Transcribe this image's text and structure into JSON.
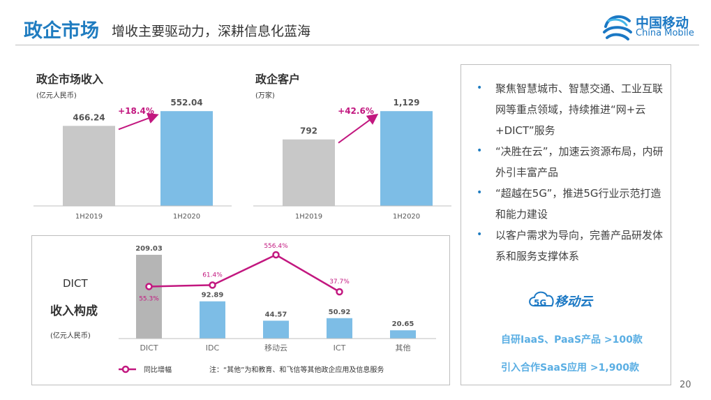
{
  "header": {
    "title": "政企市场",
    "subtitle": "增收主要驱动力，深耕信息化蓝海",
    "logo_cn": "中国移动",
    "logo_en": "China Mobile"
  },
  "page_number": "20",
  "right_panel": {
    "bullets": [
      "聚焦智慧城市、智慧交通、工业互联网等重点领域，持续推进“网+云+DICT”服务",
      "“决胜在云”，加速云资源布局，内研外引丰富产品",
      "“超越在5G”，推进5G行业示范打造和能力建设",
      "以客户需求为导向，完善产品研发体系和服务支撑体系"
    ],
    "cloud_logo_text": "移动云",
    "cloud_logo_badge": "5G",
    "stats": [
      "自研IaaS、PaaS产品 >100款",
      "引入合作SaaS应用 >1,900款"
    ]
  },
  "chart_data": [
    {
      "type": "bar",
      "title": "政企市场收入",
      "unit": "(亿元人民币)",
      "categories": [
        "1H2019",
        "1H2020"
      ],
      "values": [
        466.24,
        552.04
      ],
      "value_labels": [
        "466.24",
        "552.04"
      ],
      "growth_label": "+18.4%",
      "colors": [
        "#c8c8c8",
        "#7dbde6"
      ]
    },
    {
      "type": "bar",
      "title": "政企客户",
      "unit": "(万家)",
      "categories": [
        "1H2019",
        "1H2020"
      ],
      "values": [
        792,
        1129
      ],
      "value_labels": [
        "792",
        "1,129"
      ],
      "growth_label": "+42.6%",
      "colors": [
        "#c8c8c8",
        "#7dbde6"
      ]
    },
    {
      "type": "bar+line",
      "title_lines": [
        "DICT",
        "收入构成"
      ],
      "unit": "(亿元人民币)",
      "categories": [
        "DICT",
        "IDC",
        "移动云",
        "ICT",
        "其他"
      ],
      "values": [
        209.03,
        92.89,
        44.57,
        50.92,
        20.65
      ],
      "value_labels": [
        "209.03",
        "92.89",
        "44.57",
        "50.92",
        "20.65"
      ],
      "bar_colors": [
        "#b5b5b5",
        "#7dbde6",
        "#7dbde6",
        "#7dbde6",
        "#7dbde6"
      ],
      "line_series": {
        "name": "同比增幅",
        "categories": [
          "DICT",
          "IDC",
          "移动云",
          "ICT"
        ],
        "values": [
          55.3,
          61.4,
          556.4,
          37.7
        ],
        "labels": [
          "55.3%",
          "61.4%",
          "556.4%",
          "37.7%"
        ],
        "color": "#c2177f"
      },
      "note": "注：“其他”为和教育、和飞信等其他政企应用及信息服务"
    }
  ]
}
